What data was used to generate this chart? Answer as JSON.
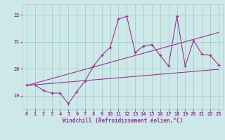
{
  "bg_color": "#cde8e8",
  "grid_color": "#aacccc",
  "line_color": "#993399",
  "xlabel": "Windchill (Refroidissement éolien,°C)",
  "xlim": [
    -0.5,
    23.5
  ],
  "ylim": [
    18.5,
    22.4
  ],
  "yticks": [
    19,
    20,
    21,
    22
  ],
  "xticks": [
    0,
    1,
    2,
    3,
    4,
    5,
    6,
    7,
    8,
    9,
    10,
    11,
    12,
    13,
    14,
    15,
    16,
    17,
    18,
    19,
    20,
    21,
    22,
    23
  ],
  "main_x": [
    0,
    1,
    2,
    3,
    4,
    5,
    6,
    7,
    8,
    9,
    10,
    11,
    12,
    13,
    14,
    15,
    16,
    17,
    18,
    19,
    20,
    21,
    22,
    23
  ],
  "main_y": [
    19.4,
    19.4,
    19.2,
    19.1,
    19.1,
    18.7,
    19.15,
    19.55,
    20.1,
    20.5,
    20.8,
    21.85,
    21.95,
    20.6,
    20.85,
    20.9,
    20.5,
    20.1,
    21.95,
    20.1,
    21.05,
    20.55,
    20.5,
    20.15
  ],
  "line1_x": [
    0,
    23
  ],
  "line1_y": [
    19.38,
    19.98
  ],
  "line2_x": [
    0,
    23
  ],
  "line2_y": [
    19.38,
    21.35
  ]
}
